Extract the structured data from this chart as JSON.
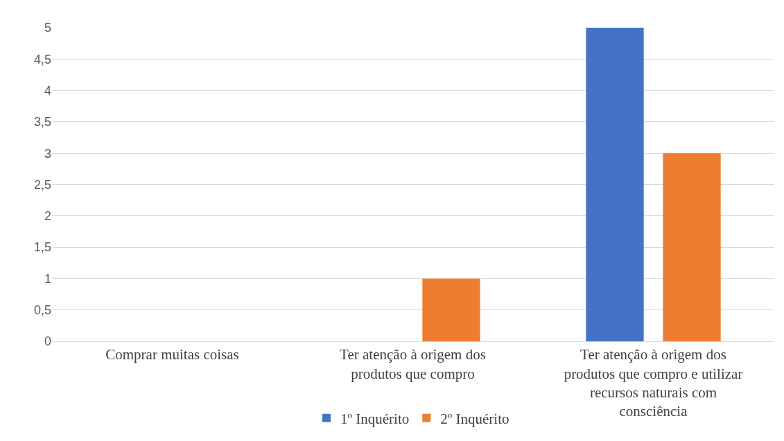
{
  "chart_data": {
    "type": "bar",
    "categories": [
      "Comprar muitas coisas",
      "Ter atenção à origem dos produtos que compro",
      "Ter atenção à origem dos produtos que compro e utilizar recursos naturais com consciência"
    ],
    "series": [
      {
        "name": "1º Inquérito",
        "color": "#4472c4",
        "values": [
          0,
          0,
          5
        ]
      },
      {
        "name": "2º Inquérito",
        "color": "#ed7d31",
        "values": [
          0,
          1,
          3
        ]
      }
    ],
    "ylim": [
      0,
      5
    ],
    "yticks": [
      0,
      {
        "value": 0.5,
        "label": "0,5"
      },
      1,
      {
        "value": 1.5,
        "label": "1,5"
      },
      2,
      {
        "value": 2.5,
        "label": "2,5"
      },
      3,
      {
        "value": 3.5,
        "label": "3,5"
      },
      4,
      {
        "value": 4.5,
        "label": "4,5"
      },
      5
    ],
    "grid": "y",
    "legend": "bottom"
  }
}
